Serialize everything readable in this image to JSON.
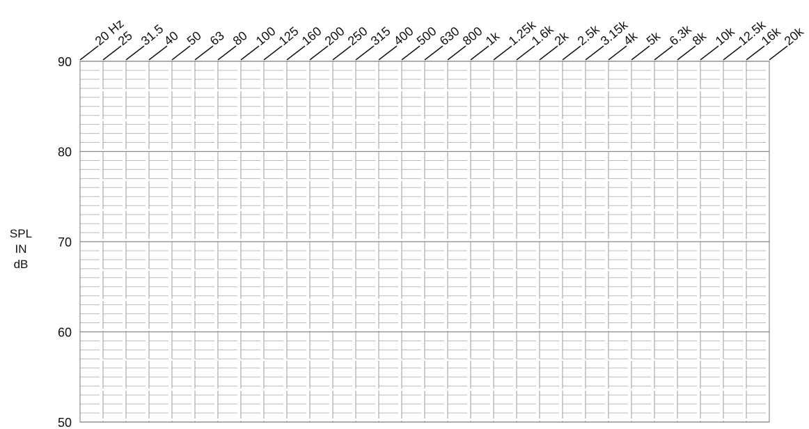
{
  "chart_data": {
    "type": "line",
    "y_label": "SPL IN dB",
    "categories": [
      "20 Hz",
      "25",
      "31.5",
      "40",
      "50",
      "63",
      "80",
      "100",
      "125",
      "160",
      "200",
      "250",
      "315",
      "400",
      "500",
      "630",
      "800",
      "1k",
      "1.25k",
      "1.6k",
      "2k",
      "2.5k",
      "3.15k",
      "4k",
      "5k",
      "6.3k",
      "8k",
      "10k",
      "12.5k",
      "16k",
      "20k"
    ],
    "series": [],
    "ylim": [
      50,
      90
    ],
    "yticks": [
      50,
      60,
      70,
      80,
      90
    ],
    "grid": true
  }
}
